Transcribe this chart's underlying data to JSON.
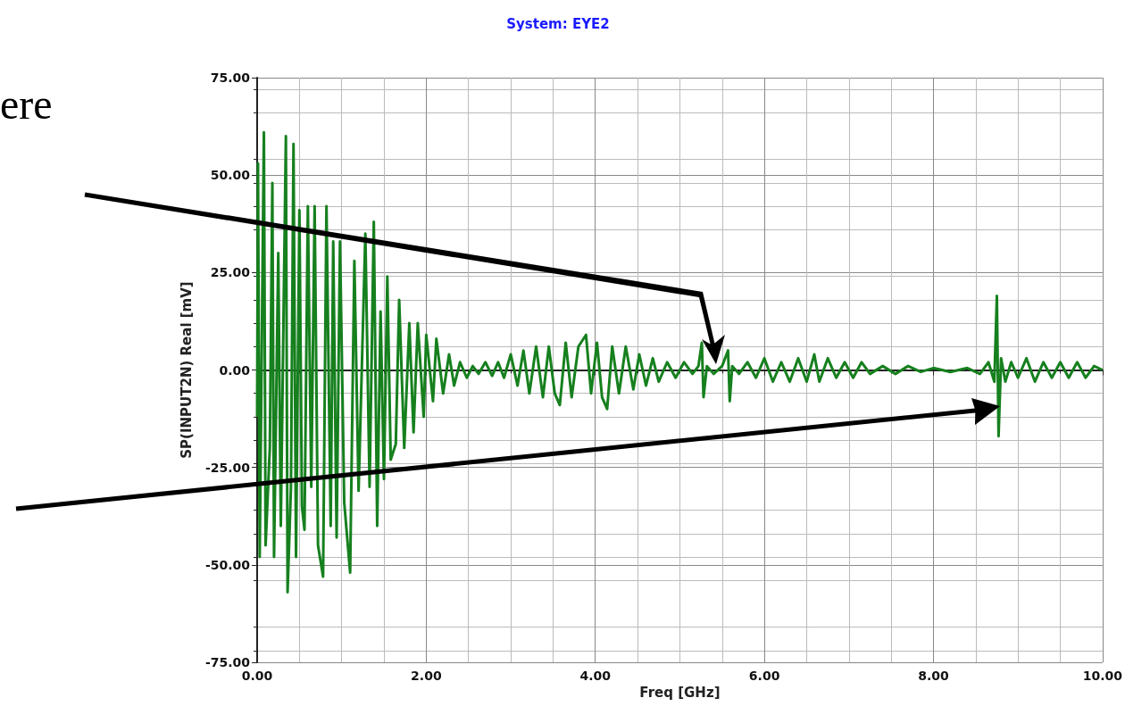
{
  "chart_data": {
    "type": "line",
    "title": "System: EYE2",
    "xlabel": "Freq [GHz]",
    "ylabel": "SP(INPUT2N) Real [mV]",
    "annotations": [
      "ere"
    ],
    "x": [
      0.0,
      0.01,
      0.03,
      0.08,
      0.1,
      0.15,
      0.18,
      0.2,
      0.25,
      0.28,
      0.34,
      0.36,
      0.4,
      0.43,
      0.46,
      0.5,
      0.53,
      0.56,
      0.6,
      0.64,
      0.68,
      0.72,
      0.78,
      0.82,
      0.87,
      0.9,
      0.94,
      0.98,
      1.03,
      1.1,
      1.15,
      1.2,
      1.28,
      1.33,
      1.38,
      1.42,
      1.46,
      1.5,
      1.54,
      1.58,
      1.64,
      1.68,
      1.74,
      1.8,
      1.85,
      1.9,
      1.97,
      2.0,
      2.08,
      2.12,
      2.2,
      2.27,
      2.33,
      2.4,
      2.48,
      2.55,
      2.62,
      2.7,
      2.78,
      2.85,
      2.92,
      3.0,
      3.08,
      3.15,
      3.22,
      3.3,
      3.38,
      3.45,
      3.52,
      3.58,
      3.65,
      3.72,
      3.8,
      3.89,
      3.95,
      4.02,
      4.08,
      4.14,
      4.2,
      4.28,
      4.36,
      4.45,
      4.52,
      4.6,
      4.68,
      4.75,
      4.85,
      4.95,
      5.05,
      5.15,
      5.22,
      5.26,
      5.28,
      5.32,
      5.4,
      5.5,
      5.57,
      5.59,
      5.62,
      5.7,
      5.8,
      5.9,
      6.0,
      6.1,
      6.2,
      6.3,
      6.4,
      6.5,
      6.59,
      6.65,
      6.75,
      6.85,
      6.95,
      7.05,
      7.15,
      7.25,
      7.4,
      7.55,
      7.7,
      7.85,
      8.0,
      8.2,
      8.4,
      8.55,
      8.65,
      8.72,
      8.75,
      8.77,
      8.8,
      8.85,
      8.92,
      9.0,
      9.1,
      9.2,
      9.3,
      9.4,
      9.5,
      9.6,
      9.7,
      9.8,
      9.9,
      10.0
    ],
    "series": [
      {
        "color": "#16801e",
        "values": [
          -12,
          53,
          -48,
          61,
          -45,
          -20,
          48,
          -48,
          30,
          -40,
          60,
          -57,
          -30,
          58,
          -48,
          41,
          -35,
          -41,
          42,
          -30,
          42,
          -45,
          -53,
          42,
          -40,
          33,
          -43,
          33,
          -34,
          -52,
          28,
          -31,
          35,
          -30,
          38,
          -40,
          15,
          -28,
          24,
          -23,
          -19,
          18,
          -20,
          12,
          -16,
          12,
          -12,
          9,
          -8,
          8,
          -6,
          4,
          -4,
          2,
          -2,
          1,
          -1,
          2,
          -1.5,
          2,
          -2,
          4,
          -4,
          5,
          -6,
          6,
          -7,
          6,
          -6,
          -9,
          7,
          -7,
          6,
          9,
          -6,
          7,
          -7,
          -10,
          6,
          -6,
          6,
          -5,
          4,
          -4,
          3,
          -3,
          2,
          -2,
          2,
          -1,
          1,
          7,
          -7,
          1,
          -1,
          1,
          5,
          -8,
          1,
          -1,
          2,
          -2,
          3,
          -3,
          2,
          -3,
          3,
          -3,
          4,
          -3,
          3,
          -2,
          2,
          -2,
          2,
          -1,
          1,
          -1,
          1,
          -0.5,
          0.5,
          -0.5,
          0.5,
          -1,
          2,
          -3,
          19,
          -17,
          3,
          -3,
          2,
          -2,
          3,
          -3,
          2,
          -2,
          2,
          -2,
          2,
          -2,
          1,
          0
        ]
      }
    ],
    "xlim": [
      0,
      10
    ],
    "xticks": [
      {
        "value": 0,
        "label": "0.00"
      },
      {
        "value": 2,
        "label": "2.00"
      },
      {
        "value": 4,
        "label": "4.00"
      },
      {
        "value": 6,
        "label": "6.00"
      },
      {
        "value": 8,
        "label": "8.00"
      },
      {
        "value": 10,
        "label": "10.00"
      }
    ],
    "ylim": [
      -75,
      75
    ],
    "yticks": [
      {
        "value": -75,
        "label": "-75.00"
      },
      {
        "value": -50,
        "label": "-50.00"
      },
      {
        "value": -25,
        "label": "-25.00"
      },
      {
        "value": 0,
        "label": "0.00"
      },
      {
        "value": 25,
        "label": "25.00"
      },
      {
        "value": 50,
        "label": "50.00"
      },
      {
        "value": 75,
        "label": "75.00"
      }
    ],
    "grid": true,
    "marker": "none",
    "line_style": "solid"
  }
}
